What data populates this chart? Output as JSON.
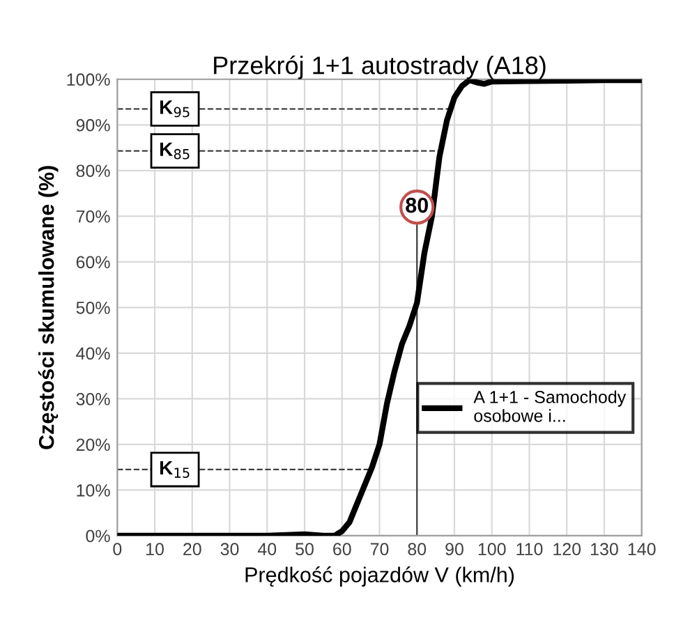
{
  "chart_data": {
    "type": "line",
    "title": "Przekrój 1+1 autostrady (A18)",
    "xlabel": "Prędkość pojazdów V (km/h)",
    "ylabel": "Częstości skumulowane (%)",
    "series": [
      {
        "name": "A 1+1 - Samochody osobowe i...",
        "color": "#000000",
        "x": [
          0,
          10,
          20,
          30,
          40,
          50,
          55,
          58,
          60,
          62,
          65,
          68,
          70,
          72,
          74,
          76,
          78,
          80,
          82,
          84,
          86,
          88,
          90,
          92,
          94,
          96,
          98,
          100,
          110,
          120,
          130,
          140
        ],
        "values": [
          0,
          0,
          0,
          0,
          0,
          0.3,
          0,
          0,
          1,
          3,
          9,
          15,
          20,
          29,
          36,
          42,
          46,
          51,
          62,
          70,
          83,
          91,
          96,
          98.5,
          99.8,
          99.3,
          99,
          99.5,
          99.6,
          99.7,
          99.8,
          99.8
        ]
      }
    ],
    "xlim": [
      0,
      140
    ],
    "xticks": [
      0,
      10,
      20,
      30,
      40,
      50,
      60,
      70,
      80,
      90,
      100,
      110,
      120,
      130,
      140
    ],
    "ylim": [
      0,
      100
    ],
    "yticks": [
      {
        "value": 0,
        "label": "0%"
      },
      {
        "value": 10,
        "label": "10%"
      },
      {
        "value": 20,
        "label": "20%"
      },
      {
        "value": 30,
        "label": "30%"
      },
      {
        "value": 40,
        "label": "40%"
      },
      {
        "value": 50,
        "label": "50%"
      },
      {
        "value": 60,
        "label": "60%"
      },
      {
        "value": 70,
        "label": "70%"
      },
      {
        "value": 80,
        "label": "80%"
      },
      {
        "value": 90,
        "label": "90%"
      },
      {
        "value": 100,
        "label": "100%"
      }
    ],
    "ref_lines": [
      {
        "axis": "y",
        "value": 93.5,
        "label": "K$_{95}$",
        "line_style": "dashed",
        "color": "#404040"
      },
      {
        "axis": "y",
        "value": 84.3,
        "label": "K$_{85}$",
        "line_style": "dashed",
        "color": "#404040"
      },
      {
        "axis": "y",
        "value": 14.5,
        "label": "K$_{15}$",
        "line_style": "dashed",
        "color": "#404040"
      },
      {
        "axis": "x",
        "value": 80,
        "label": "80",
        "line_style": "solid",
        "color": "#404040"
      }
    ],
    "grid": true,
    "legend": "right",
    "marker": "none",
    "line_style": "solid"
  }
}
